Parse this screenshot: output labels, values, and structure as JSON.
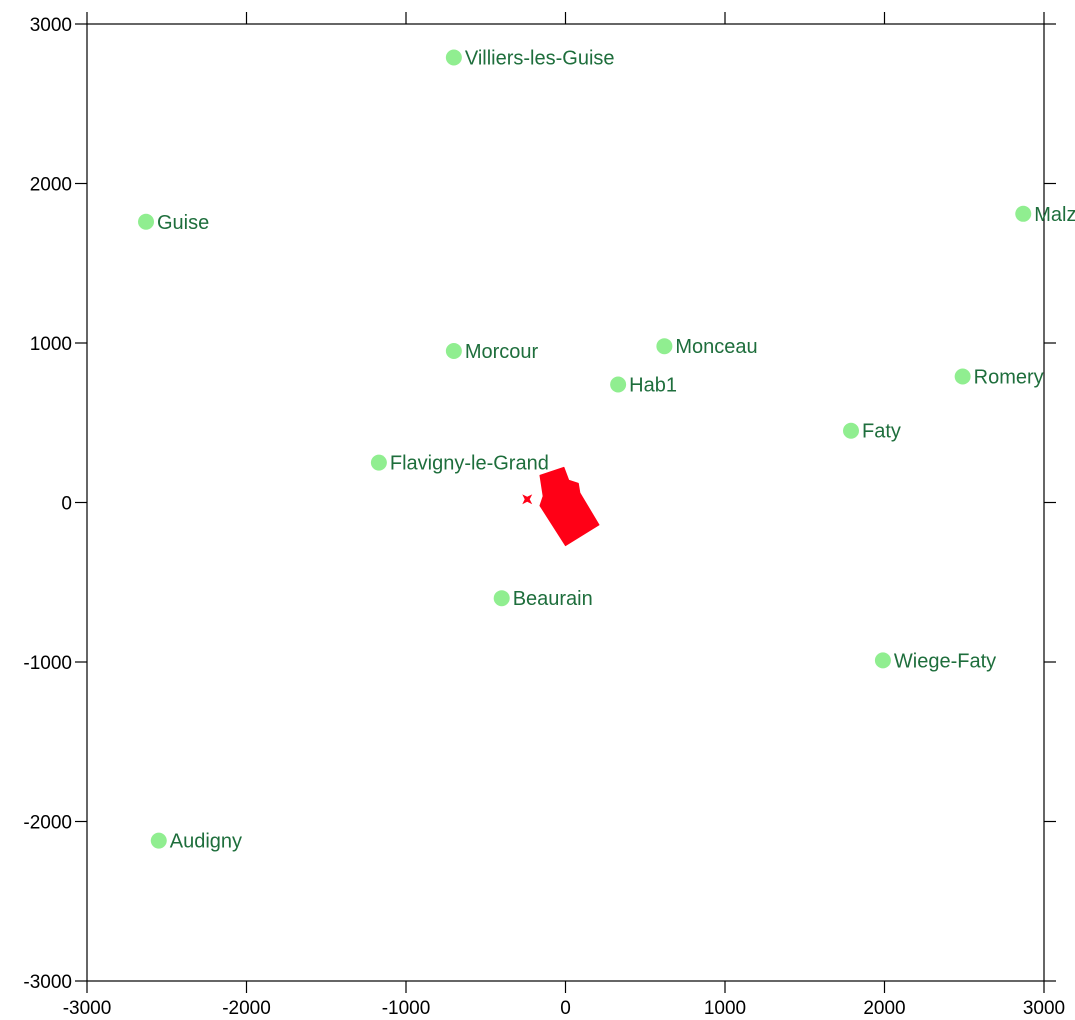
{
  "chart_data": {
    "type": "scatter",
    "title": "",
    "xlabel": "",
    "ylabel": "",
    "xlim": [
      -3000,
      3000
    ],
    "ylim": [
      -3000,
      3000
    ],
    "x_ticks": [
      -3000,
      -2000,
      -1000,
      0,
      1000,
      2000,
      3000
    ],
    "y_ticks": [
      -3000,
      -2000,
      -1000,
      0,
      1000,
      2000,
      3000
    ],
    "x_tick_labels": [
      "-3000",
      "-2000",
      "-1000",
      "0",
      "1000",
      "2000",
      "3000"
    ],
    "y_tick_labels": [
      "-3000",
      "-2000",
      "-1000",
      "0",
      "1000",
      "2000",
      "3000"
    ],
    "grid": false,
    "legend": "none",
    "marker_color": "#90ee90",
    "label_color": "#1e6e3c",
    "points": [
      {
        "label": "Villiers-les-Guise",
        "x": -700,
        "y": 2790
      },
      {
        "label": "Guise",
        "x": -2630,
        "y": 1760
      },
      {
        "label": "Malz",
        "x": 2870,
        "y": 1810
      },
      {
        "label": "Morcour",
        "x": -700,
        "y": 950
      },
      {
        "label": "Monceau",
        "x": 620,
        "y": 980
      },
      {
        "label": "Hab1",
        "x": 330,
        "y": 740
      },
      {
        "label": "Romery",
        "x": 2490,
        "y": 790
      },
      {
        "label": "Faty",
        "x": 1790,
        "y": 450
      },
      {
        "label": "Flavigny-le-Grand",
        "x": -1170,
        "y": 250
      },
      {
        "label": "Beaurain",
        "x": -400,
        "y": -600
      },
      {
        "label": "Wiege-Faty",
        "x": 1990,
        "y": -990
      },
      {
        "label": "Audigny",
        "x": -2550,
        "y": -2120
      }
    ],
    "source_shape": {
      "color": "#ff0016",
      "polygon": [
        [
          -160,
          170
        ],
        [
          -10,
          220
        ],
        [
          20,
          140
        ],
        [
          80,
          120
        ],
        [
          90,
          60
        ],
        [
          210,
          -140
        ],
        [
          0,
          -270
        ],
        [
          -160,
          -20
        ],
        [
          -140,
          40
        ]
      ]
    },
    "source_marker": {
      "color": "#ff0016",
      "x": -240,
      "y": 20
    }
  }
}
